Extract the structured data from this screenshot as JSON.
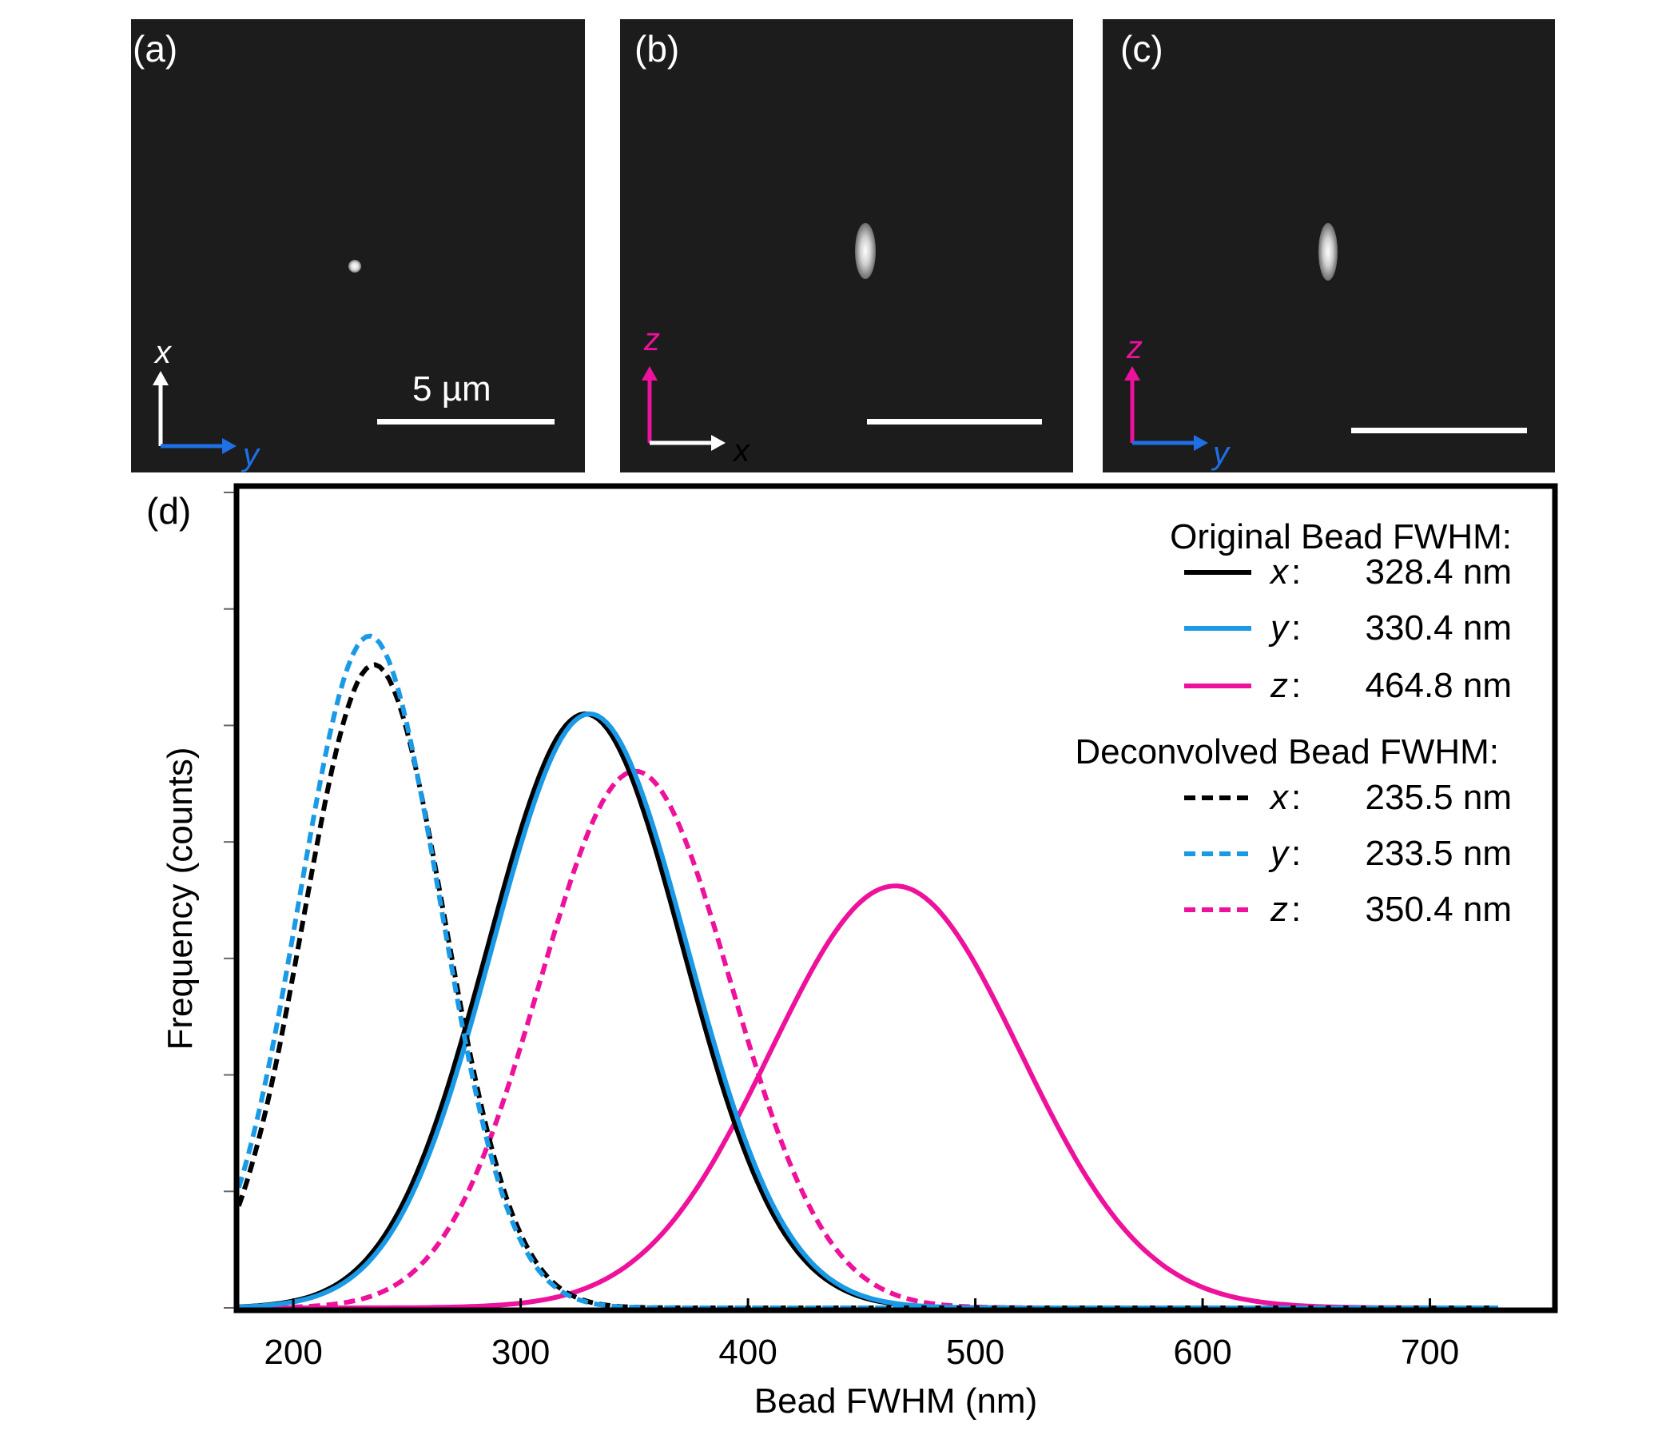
{
  "panels": [
    {
      "label": "(a)",
      "axis_v": "x",
      "axis_h": "y",
      "scale_label": "5 µm"
    },
    {
      "label": "(b)",
      "axis_v": "z",
      "axis_h": "x"
    },
    {
      "label": "(c)",
      "axis_v": "z",
      "axis_h": "y"
    }
  ],
  "colors": {
    "black": "#000000",
    "blue": "#1a9ae6",
    "magenta": "#ee119b",
    "axis_blue": "#1f6fe6",
    "panel_bg": "#1c1c1c"
  },
  "chart_data": {
    "type": "line",
    "panel_label": "(d)",
    "xlabel": "Bead FWHM (nm)",
    "ylabel": "Frequency (counts)",
    "xlim": [
      175,
      755
    ],
    "ylim": [
      0,
      1.0
    ],
    "xticks": [
      200,
      300,
      400,
      500,
      600,
      700
    ],
    "legend": {
      "original_title": "Original Bead FWHM:",
      "deconvolved_title": "Deconvolved Bead FWHM:"
    },
    "series": [
      {
        "name": "x",
        "group": "original",
        "value_label": "328.4 nm",
        "mean": 328.4,
        "sigma": 43,
        "peak": 0.725,
        "color": "#000000",
        "style": "solid"
      },
      {
        "name": "y",
        "group": "original",
        "value_label": "330.4 nm",
        "mean": 330.4,
        "sigma": 43,
        "peak": 0.725,
        "color": "#1a9ae6",
        "style": "solid"
      },
      {
        "name": "z",
        "group": "original",
        "value_label": "464.8 nm",
        "mean": 464.8,
        "sigma": 55,
        "peak": 0.515,
        "color": "#ee119b",
        "style": "solid"
      },
      {
        "name": "x",
        "group": "deconvolved",
        "value_label": "235.5 nm",
        "mean": 235.5,
        "sigma": 31,
        "peak": 0.785,
        "color": "#000000",
        "style": "dashed"
      },
      {
        "name": "y",
        "group": "deconvolved",
        "value_label": "233.5 nm",
        "mean": 233.5,
        "sigma": 31,
        "peak": 0.82,
        "color": "#1a9ae6",
        "style": "dashed"
      },
      {
        "name": "z",
        "group": "deconvolved",
        "value_label": "350.4 nm",
        "mean": 350.4,
        "sigma": 42,
        "peak": 0.655,
        "color": "#ee119b",
        "style": "dashed"
      }
    ]
  }
}
